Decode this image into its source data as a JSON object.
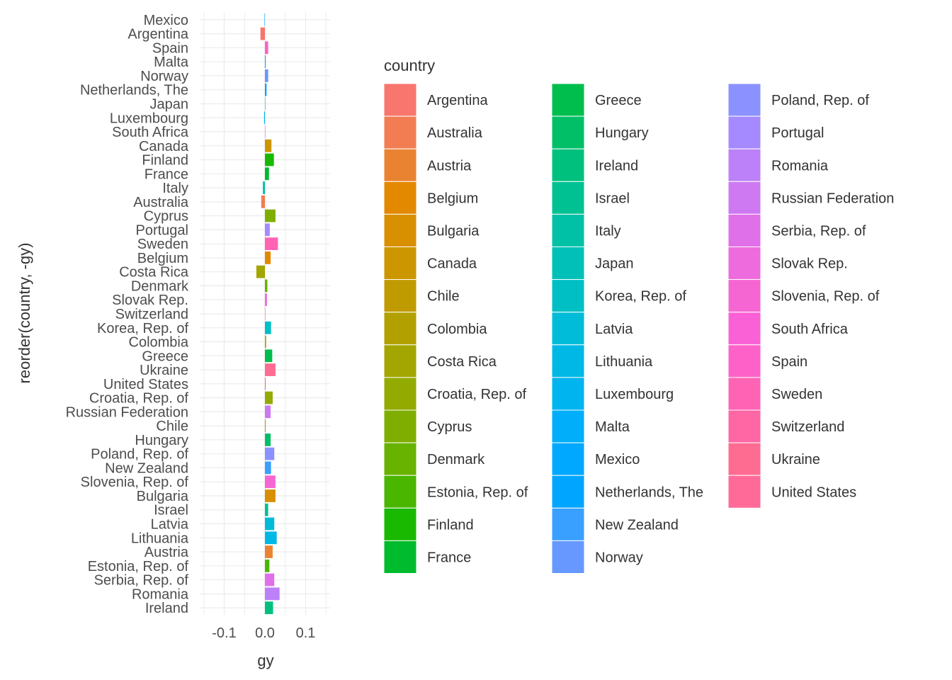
{
  "chart_data": {
    "type": "bar",
    "orientation": "horizontal",
    "xlabel": "gy",
    "ylabel": "reorder(country, -gy)",
    "xlim": [
      -0.16,
      0.16
    ],
    "x_ticks": [
      -0.1,
      0.0,
      0.1
    ],
    "x_tick_labels": [
      "-0.1",
      "0.0",
      "0.1"
    ],
    "grid": true,
    "legend": {
      "title": "country",
      "placement": "right",
      "columns": 3,
      "entries": [
        {
          "label": "Argentina",
          "color": "#F8766D"
        },
        {
          "label": "Australia",
          "color": "#F27D53"
        },
        {
          "label": "Austria",
          "color": "#EA8331"
        },
        {
          "label": "Belgium",
          "color": "#E38900"
        },
        {
          "label": "Bulgaria",
          "color": "#D89000"
        },
        {
          "label": "Canada",
          "color": "#CC9600"
        },
        {
          "label": "Chile",
          "color": "#C09B00"
        },
        {
          "label": "Colombia",
          "color": "#B2A000"
        },
        {
          "label": "Costa Rica",
          "color": "#A3A500"
        },
        {
          "label": "Croatia, Rep. of",
          "color": "#93AA00"
        },
        {
          "label": "Cyprus",
          "color": "#7FAE00"
        },
        {
          "label": "Denmark",
          "color": "#68B200"
        },
        {
          "label": "Estonia, Rep. of",
          "color": "#4AB600"
        },
        {
          "label": "Finland",
          "color": "#19B900"
        },
        {
          "label": "France",
          "color": "#00BB2D"
        },
        {
          "label": "Greece",
          "color": "#00BE4E"
        },
        {
          "label": "Hungary",
          "color": "#00BF67"
        },
        {
          "label": "Ireland",
          "color": "#00C07D"
        },
        {
          "label": "Israel",
          "color": "#00C192"
        },
        {
          "label": "Italy",
          "color": "#00C1A5"
        },
        {
          "label": "Japan",
          "color": "#00C0B8"
        },
        {
          "label": "Korea, Rep. of",
          "color": "#00BFC4"
        },
        {
          "label": "Latvia",
          "color": "#00BCD8"
        },
        {
          "label": "Lithuania",
          "color": "#00B8E5"
        },
        {
          "label": "Luxembourg",
          "color": "#00B4F0"
        },
        {
          "label": "Malta",
          "color": "#00AEFA"
        },
        {
          "label": "Mexico",
          "color": "#00A8FF"
        },
        {
          "label": "Netherlands, The",
          "color": "#00A5FF"
        },
        {
          "label": "New Zealand",
          "color": "#39A0FF"
        },
        {
          "label": "Norway",
          "color": "#6798FF"
        },
        {
          "label": "Poland, Rep. of",
          "color": "#8B92FF"
        },
        {
          "label": "Portugal",
          "color": "#A58AFF"
        },
        {
          "label": "Romania",
          "color": "#BC81F9"
        },
        {
          "label": "Russian Federation",
          "color": "#CE79F2"
        },
        {
          "label": "Serbia, Rep. of",
          "color": "#E070E9"
        },
        {
          "label": "Slovak Rep.",
          "color": "#EE6BDE"
        },
        {
          "label": "Slovenia, Rep. of",
          "color": "#F666D2"
        },
        {
          "label": "South Africa",
          "color": "#FB61D6"
        },
        {
          "label": "Spain",
          "color": "#FE61C8"
        },
        {
          "label": "Sweden",
          "color": "#FF63B4"
        },
        {
          "label": "Switzerland",
          "color": "#FF67A4"
        },
        {
          "label": "Ukraine",
          "color": "#FF6C91"
        },
        {
          "label": "United States",
          "color": "#FF6A98"
        }
      ]
    },
    "bars": [
      {
        "country": "Mexico",
        "value": -0.001
      },
      {
        "country": "Argentina",
        "value": -0.011
      },
      {
        "country": "Spain",
        "value": 0.008
      },
      {
        "country": "Malta",
        "value": 0.002
      },
      {
        "country": "Norway",
        "value": 0.008
      },
      {
        "country": "Netherlands, The",
        "value": 0.004
      },
      {
        "country": "Japan",
        "value": 0.0
      },
      {
        "country": "Luxembourg",
        "value": -0.002
      },
      {
        "country": "South Africa",
        "value": 0.001
      },
      {
        "country": "Canada",
        "value": 0.016
      },
      {
        "country": "Finland",
        "value": 0.022
      },
      {
        "country": "France",
        "value": 0.01
      },
      {
        "country": "Italy",
        "value": -0.005
      },
      {
        "country": "Australia",
        "value": -0.009
      },
      {
        "country": "Cyprus",
        "value": 0.026
      },
      {
        "country": "Portugal",
        "value": 0.012
      },
      {
        "country": "Sweden",
        "value": 0.032
      },
      {
        "country": "Belgium",
        "value": 0.014
      },
      {
        "country": "Costa Rica",
        "value": -0.021
      },
      {
        "country": "Denmark",
        "value": 0.006
      },
      {
        "country": "Slovak Rep.",
        "value": 0.005
      },
      {
        "country": "Switzerland",
        "value": 0.001
      },
      {
        "country": "Korea, Rep. of",
        "value": 0.015
      },
      {
        "country": "Colombia",
        "value": 0.003
      },
      {
        "country": "Greece",
        "value": 0.018
      },
      {
        "country": "Ukraine",
        "value": 0.026
      },
      {
        "country": "United States",
        "value": 0.002
      },
      {
        "country": "Croatia, Rep. of",
        "value": 0.019
      },
      {
        "country": "Russian Federation",
        "value": 0.014
      },
      {
        "country": "Chile",
        "value": 0.002
      },
      {
        "country": "Hungary",
        "value": 0.014
      },
      {
        "country": "Poland, Rep. of",
        "value": 0.023
      },
      {
        "country": "New Zealand",
        "value": 0.015
      },
      {
        "country": "Slovenia, Rep. of",
        "value": 0.026
      },
      {
        "country": "Bulgaria",
        "value": 0.026
      },
      {
        "country": "Israel",
        "value": 0.008
      },
      {
        "country": "Latvia",
        "value": 0.023
      },
      {
        "country": "Lithuania",
        "value": 0.029
      },
      {
        "country": "Austria",
        "value": 0.019
      },
      {
        "country": "Estonia, Rep. of",
        "value": 0.011
      },
      {
        "country": "Serbia, Rep. of",
        "value": 0.023
      },
      {
        "country": "Romania",
        "value": 0.036
      },
      {
        "country": "Ireland",
        "value": 0.02
      }
    ]
  }
}
